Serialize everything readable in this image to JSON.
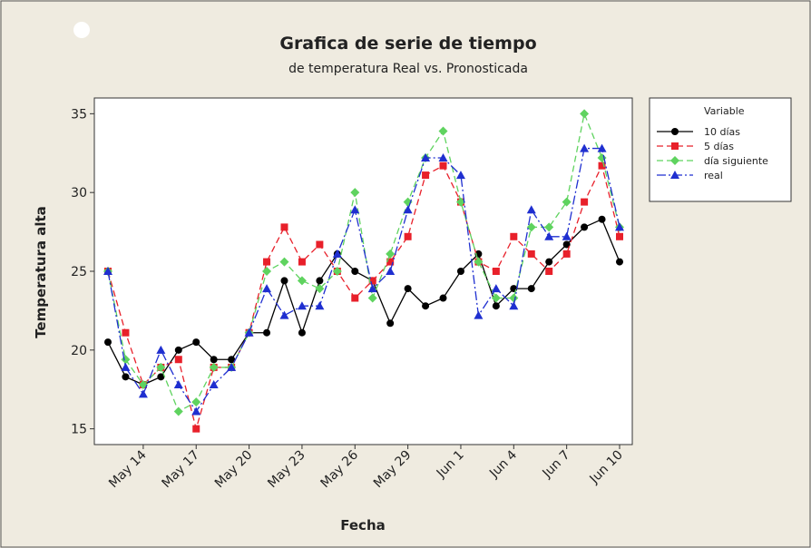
{
  "chart_data": {
    "type": "line",
    "title": "Grafica de serie de tiempo",
    "subtitle": "de temperatura Real vs. Pronosticada",
    "x_label": "Fecha",
    "y_label": "Temperatura alta",
    "legend_title": "Variable",
    "legend": "outside-right-top",
    "categories": [
      null,
      null,
      "May 14",
      null,
      null,
      "May 17",
      null,
      null,
      "May 20",
      null,
      null,
      "May 23",
      null,
      null,
      "May 26",
      null,
      null,
      "May 29",
      null,
      null,
      "Jun 1",
      null,
      null,
      "Jun 4",
      null,
      null,
      "Jun 7",
      null,
      null,
      "Jun 10"
    ],
    "ylim": [
      14,
      36
    ],
    "yticks": [
      15,
      20,
      25,
      30,
      35
    ],
    "series": [
      {
        "name": "10 días",
        "color": "#000000",
        "marker": "circle",
        "linestyle": "solid",
        "values": [
          20.5,
          18.3,
          17.8,
          18.3,
          20,
          20.5,
          19.4,
          19.4,
          21.1,
          21.1,
          24.4,
          21.1,
          24.4,
          26.1,
          25,
          24.4,
          21.7,
          23.9,
          22.8,
          23.3,
          25,
          26.1,
          22.8,
          23.9,
          23.9,
          25.6,
          26.7,
          27.8,
          28.3,
          25.6
        ]
      },
      {
        "name": "5 días",
        "color": "#e8202a",
        "marker": "square",
        "linestyle": "dashed",
        "values": [
          25,
          21.1,
          17.8,
          18.9,
          19.4,
          15,
          18.9,
          18.9,
          21.1,
          25.6,
          27.8,
          25.6,
          26.7,
          25,
          23.3,
          24.4,
          25.6,
          27.2,
          31.1,
          31.7,
          29.4,
          25.6,
          25,
          27.2,
          26.1,
          25,
          26.1,
          29.4,
          31.7,
          27.2
        ]
      },
      {
        "name": "día siguiente",
        "color": "#5fd35f",
        "marker": "diamond",
        "linestyle": "dashed",
        "values": [
          25,
          19.4,
          17.8,
          18.9,
          16.1,
          16.7,
          18.9,
          18.9,
          21.1,
          25,
          25.6,
          24.4,
          23.9,
          25,
          30,
          23.3,
          26.1,
          29.4,
          32.2,
          33.9,
          29.4,
          25.6,
          23.3,
          23.3,
          27.8,
          27.8,
          29.4,
          35,
          32.2,
          27.8
        ]
      },
      {
        "name": "real",
        "color": "#1f2fd0",
        "marker": "triangle",
        "linestyle": "dashdot",
        "values": [
          25,
          18.9,
          17.2,
          20,
          17.8,
          16.1,
          17.8,
          18.9,
          21.1,
          23.9,
          22.2,
          22.8,
          22.8,
          26.1,
          28.9,
          23.9,
          25,
          28.9,
          32.2,
          32.2,
          31.1,
          22.2,
          23.9,
          22.8,
          28.9,
          27.2,
          27.2,
          32.8,
          32.8,
          27.8
        ]
      }
    ]
  }
}
